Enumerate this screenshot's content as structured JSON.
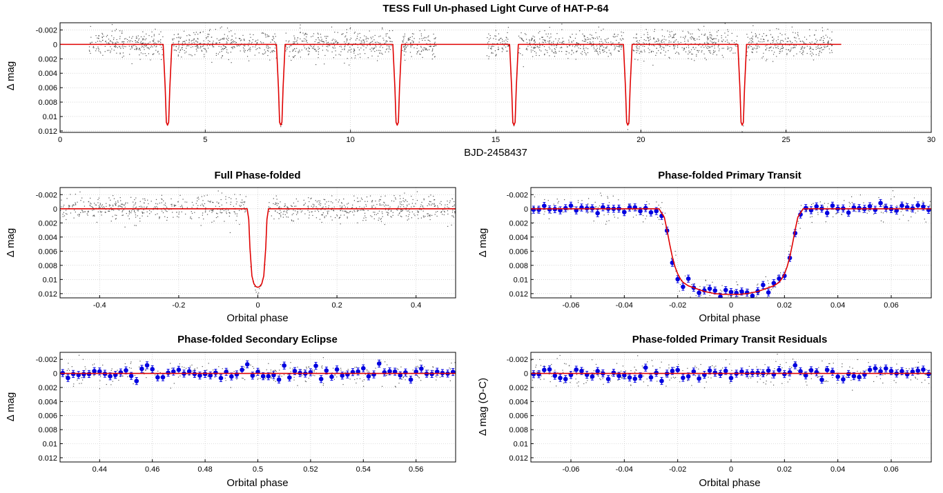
{
  "figure": {
    "colors": {
      "model": "#e00000",
      "raw_points": "#505050",
      "binned_points": "#0000e0",
      "frame": "#000000"
    }
  },
  "chart_data": [
    {
      "id": "full",
      "type": "scatter",
      "title": "TESS Full Un-phased Light Curve of HAT-P-64",
      "xlabel": "BJD-2458437",
      "ylabel": "Δ mag",
      "xlim": [
        0,
        30
      ],
      "ylim": [
        -0.003,
        0.0122
      ],
      "y_inverted": true,
      "grid": true,
      "xticks": [
        0,
        5,
        10,
        15,
        20,
        25,
        30
      ],
      "xtick_labels": [
        "0",
        "5",
        "10",
        "15",
        "20",
        "25",
        "30"
      ],
      "yticks": [
        -0.002,
        0,
        0.002,
        0.004,
        0.006,
        0.008,
        0.01,
        0.012
      ],
      "ytick_labels": [
        "-0.002",
        "0",
        "0.002",
        "0.004",
        "0.006",
        "0.008",
        "0.01",
        "0.012"
      ],
      "model": {
        "x": [
          0,
          3.55,
          3.62,
          3.66,
          3.7,
          3.74,
          3.78,
          3.85,
          7.45,
          7.52,
          7.56,
          7.6,
          7.64,
          7.68,
          7.75,
          11.46,
          11.53,
          11.57,
          11.61,
          11.65,
          11.69,
          11.76,
          15.48,
          15.55,
          15.59,
          15.63,
          15.67,
          15.71,
          15.78,
          19.4,
          19.47,
          19.51,
          19.55,
          19.59,
          19.63,
          19.7,
          23.34,
          23.41,
          23.45,
          23.49,
          23.53,
          23.57,
          23.64,
          26.9
        ],
        "y": [
          0,
          0,
          0.006,
          0.0108,
          0.0112,
          0.0108,
          0.006,
          0,
          0,
          0.006,
          0.0108,
          0.0112,
          0.0108,
          0.006,
          0,
          0,
          0.006,
          0.0108,
          0.0112,
          0.0108,
          0.006,
          0,
          0,
          0.006,
          0.0108,
          0.0112,
          0.0108,
          0.006,
          0,
          0,
          0.006,
          0.0108,
          0.0112,
          0.0108,
          0.006,
          0,
          0,
          0.006,
          0.0108,
          0.0112,
          0.0108,
          0.006,
          0,
          0
        ]
      },
      "raw_points": {
        "x_segments": [
          [
            1.0,
            3.55
          ],
          [
            3.85,
            7.45
          ],
          [
            7.75,
            11.46
          ],
          [
            11.76,
            13.0
          ],
          [
            14.7,
            15.48
          ],
          [
            15.78,
            19.4
          ],
          [
            19.7,
            23.34
          ],
          [
            23.64,
            26.6
          ]
        ],
        "scatter_sd": 0.0009,
        "in_transit_x": [
          3.66,
          3.7,
          3.74,
          7.56,
          7.6,
          7.64,
          11.57,
          11.61,
          11.65,
          15.59,
          15.63,
          15.67,
          19.51,
          19.55,
          19.59,
          23.45,
          23.49,
          23.53
        ],
        "in_transit_y": [
          0.0102,
          0.0112,
          0.0106,
          0.0107,
          0.0114,
          0.0111,
          0.0103,
          0.0111,
          0.0108,
          0.0109,
          0.0113,
          0.0104,
          0.0106,
          0.0118,
          0.011,
          0.0108,
          0.0121,
          0.0113
        ]
      }
    },
    {
      "id": "phase",
      "type": "scatter",
      "title": "Full Phase-folded",
      "xlabel": "Orbital phase",
      "ylabel": "Δ mag",
      "xlim": [
        -0.5,
        0.5
      ],
      "ylim": [
        -0.003,
        0.0126
      ],
      "y_inverted": true,
      "grid": true,
      "xticks": [
        -0.4,
        -0.2,
        0,
        0.2,
        0.4
      ],
      "xtick_labels": [
        "-0.4",
        "-0.2",
        "0",
        "0.2",
        "0.4"
      ],
      "yticks": [
        -0.002,
        0,
        0.002,
        0.004,
        0.006,
        0.008,
        0.01,
        0.012
      ],
      "ytick_labels": [
        "-0.002",
        "0",
        "0.002",
        "0.004",
        "0.006",
        "0.008",
        "0.01",
        "0.012"
      ],
      "model": {
        "x": [
          -0.5,
          -0.027,
          -0.023,
          -0.02,
          -0.015,
          -0.01,
          -0.005,
          0,
          0.005,
          0.01,
          0.015,
          0.02,
          0.023,
          0.027,
          0.5
        ],
        "y": [
          0,
          0,
          0.0015,
          0.0055,
          0.0095,
          0.0106,
          0.011,
          0.0111,
          0.011,
          0.0106,
          0.0095,
          0.0055,
          0.0015,
          0,
          0
        ]
      },
      "raw_points": {
        "x_range": [
          -0.5,
          0.5
        ],
        "count": 950,
        "scatter_sd": 0.0009,
        "transit_x": [
          -0.012,
          -0.008,
          -0.004,
          0.0,
          0.004,
          0.008,
          0.012,
          -0.018,
          0.018,
          -0.006,
          0.006,
          0.002
        ],
        "transit_y": [
          0.0103,
          0.011,
          0.0118,
          0.0121,
          0.0113,
          0.0109,
          0.0101,
          0.0082,
          0.0079,
          0.0115,
          0.0108,
          0.0119
        ]
      }
    },
    {
      "id": "primary",
      "type": "scatter",
      "title": "Phase-folded Primary Transit",
      "xlabel": "Orbital phase",
      "ylabel": "Δ mag",
      "xlim": [
        -0.075,
        0.075
      ],
      "ylim": [
        -0.003,
        0.0126
      ],
      "y_inverted": true,
      "grid": true,
      "xticks": [
        -0.06,
        -0.04,
        -0.02,
        0,
        0.02,
        0.04,
        0.06
      ],
      "xtick_labels": [
        "-0.06",
        "-0.04",
        "-0.02",
        "0",
        "0.02",
        "0.04",
        "0.06"
      ],
      "yticks": [
        -0.002,
        0,
        0.002,
        0.004,
        0.006,
        0.008,
        0.01,
        0.012
      ],
      "ytick_labels": [
        "-0.002",
        "0",
        "0.002",
        "0.004",
        "0.006",
        "0.008",
        "0.01",
        "0.012"
      ],
      "model": {
        "x": [
          -0.075,
          -0.027,
          -0.025,
          -0.024,
          -0.023,
          -0.022,
          -0.021,
          -0.02,
          -0.019,
          -0.018,
          -0.016,
          -0.013,
          -0.01,
          -0.006,
          -0.003,
          0,
          0.003,
          0.006,
          0.01,
          0.013,
          0.016,
          0.018,
          0.019,
          0.02,
          0.021,
          0.022,
          0.023,
          0.024,
          0.025,
          0.027,
          0.075
        ],
        "y": [
          0,
          0,
          0.0012,
          0.003,
          0.005,
          0.0068,
          0.0082,
          0.0092,
          0.0099,
          0.0104,
          0.0109,
          0.0113,
          0.0117,
          0.012,
          0.0121,
          0.0121,
          0.0121,
          0.012,
          0.0117,
          0.0113,
          0.0109,
          0.0104,
          0.0099,
          0.0092,
          0.0082,
          0.0068,
          0.005,
          0.003,
          0.0012,
          0,
          0
        ]
      },
      "binned": {
        "x_start": -0.074,
        "x_step": 0.002,
        "count": 75,
        "error": 0.0005,
        "scatter_sd": 0.0004
      },
      "raw_points": {
        "count": 300,
        "scatter_sd": 0.0009
      }
    },
    {
      "id": "secondary",
      "type": "scatter",
      "title": "Phase-folded Secondary Eclipse",
      "xlabel": "Orbital phase",
      "ylabel": "Δ mag",
      "xlim": [
        0.425,
        0.575
      ],
      "ylim": [
        -0.003,
        0.0126
      ],
      "y_inverted": true,
      "grid": true,
      "xticks": [
        0.44,
        0.46,
        0.48,
        0.5,
        0.52,
        0.54,
        0.56
      ],
      "xtick_labels": [
        "0.44",
        "0.46",
        "0.48",
        "0.5",
        "0.52",
        "0.54",
        "0.56"
      ],
      "yticks": [
        -0.002,
        0,
        0.002,
        0.004,
        0.006,
        0.008,
        0.01,
        0.012
      ],
      "ytick_labels": [
        "-0.002",
        "0",
        "0.002",
        "0.004",
        "0.006",
        "0.008",
        "0.01",
        "0.012"
      ],
      "model": {
        "x": [
          0.425,
          0.575
        ],
        "y": [
          0,
          0
        ]
      },
      "binned": {
        "x_start": 0.426,
        "x_step": 0.002,
        "count": 75,
        "error": 0.0005,
        "scatter_sd": 0.0005
      },
      "raw_points": {
        "count": 300,
        "scatter_sd": 0.0009
      }
    },
    {
      "id": "residuals",
      "type": "scatter",
      "title": "Phase-folded Primary Transit Residuals",
      "xlabel": "Orbital phase",
      "ylabel": "Δ mag (O-C)",
      "xlim": [
        -0.075,
        0.075
      ],
      "ylim": [
        -0.003,
        0.0126
      ],
      "y_inverted": true,
      "grid": true,
      "xticks": [
        -0.06,
        -0.04,
        -0.02,
        0,
        0.02,
        0.04,
        0.06
      ],
      "xtick_labels": [
        "-0.06",
        "-0.04",
        "-0.02",
        "0",
        "0.02",
        "0.04",
        "0.06"
      ],
      "yticks": [
        -0.002,
        0,
        0.002,
        0.004,
        0.006,
        0.008,
        0.01,
        0.012
      ],
      "ytick_labels": [
        "-0.002",
        "0",
        "0.002",
        "0.004",
        "0.006",
        "0.008",
        "0.01",
        "0.012"
      ],
      "model": {
        "x": [
          -0.075,
          0.075
        ],
        "y": [
          0,
          0
        ]
      },
      "binned": {
        "x_start": -0.074,
        "x_step": 0.002,
        "count": 75,
        "error": 0.0005,
        "scatter_sd": 0.0005
      },
      "raw_points": {
        "count": 300,
        "scatter_sd": 0.0009
      }
    }
  ]
}
